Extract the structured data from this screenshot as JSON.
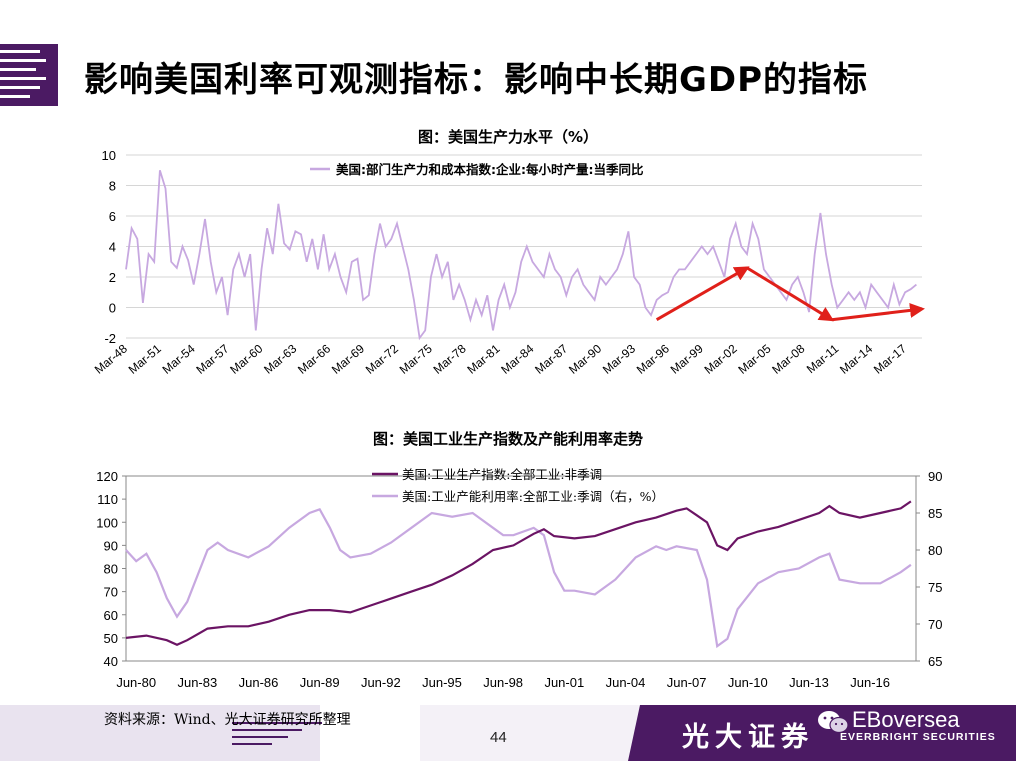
{
  "slide": {
    "title": "影响美国利率可观测指标：影响中长期GDP的指标",
    "source_note": "资料来源：Wind、光大证券研究所整理",
    "page_number": "44",
    "brand_cn": "光大证券",
    "brand_en": "EBoversea",
    "brand_en_sub": "EVERBRIGHT SECURITIES",
    "colors": {
      "accent": "#4b1a63",
      "line_light": "#c7a8e0",
      "line_dark": "#6b1464",
      "arrow": "#e0201a"
    }
  },
  "chart_data": [
    {
      "type": "line",
      "title": "图：美国生产力水平（%）",
      "legend_label": "美国:部门生产力和成本指数:企业:每小时产量:当季同比",
      "ylim": [
        -2,
        10
      ],
      "yticks": [
        "10",
        "8",
        "6",
        "4",
        "2",
        "0",
        "-2"
      ],
      "xticks": [
        "Mar-48",
        "Mar-51",
        "Mar-54",
        "Mar-57",
        "Mar-60",
        "Mar-63",
        "Mar-66",
        "Mar-69",
        "Mar-72",
        "Mar-75",
        "Mar-78",
        "Mar-81",
        "Mar-84",
        "Mar-87",
        "Mar-90",
        "Mar-93",
        "Mar-96",
        "Mar-99",
        "Mar-02",
        "Mar-05",
        "Mar-08",
        "Mar-11",
        "Mar-14",
        "Mar-17"
      ],
      "grid": true,
      "series": [
        {
          "name": "美国:部门生产力和成本指数:企业:每小时产量:当季同比",
          "x": [
            1948.0,
            1948.5,
            1949.0,
            1949.5,
            1950.0,
            1950.5,
            1951.0,
            1951.5,
            1952.0,
            1952.5,
            1953.0,
            1953.5,
            1954.0,
            1954.5,
            1955.0,
            1955.5,
            1956.0,
            1956.5,
            1957.0,
            1957.5,
            1958.0,
            1958.5,
            1959.0,
            1959.5,
            1960.0,
            1960.5,
            1961.0,
            1961.5,
            1962.0,
            1962.5,
            1963.0,
            1963.5,
            1964.0,
            1964.5,
            1965.0,
            1965.5,
            1966.0,
            1966.5,
            1967.0,
            1967.5,
            1968.0,
            1968.5,
            1969.0,
            1969.5,
            1970.0,
            1970.5,
            1971.0,
            1971.5,
            1972.0,
            1972.5,
            1973.0,
            1973.5,
            1974.0,
            1974.5,
            1975.0,
            1975.5,
            1976.0,
            1976.5,
            1977.0,
            1977.5,
            1978.0,
            1978.5,
            1979.0,
            1979.5,
            1980.0,
            1980.5,
            1981.0,
            1981.5,
            1982.0,
            1982.5,
            1983.0,
            1983.5,
            1984.0,
            1984.5,
            1985.0,
            1985.5,
            1986.0,
            1986.5,
            1987.0,
            1987.5,
            1988.0,
            1988.5,
            1989.0,
            1989.5,
            1990.0,
            1990.5,
            1991.0,
            1991.5,
            1992.0,
            1992.5,
            1993.0,
            1993.5,
            1994.0,
            1994.5,
            1995.0,
            1995.5,
            1996.0,
            1996.5,
            1997.0,
            1997.5,
            1998.0,
            1998.5,
            1999.0,
            1999.5,
            2000.0,
            2000.5,
            2001.0,
            2001.5,
            2002.0,
            2002.5,
            2003.0,
            2003.5,
            2004.0,
            2004.5,
            2005.0,
            2005.5,
            2006.0,
            2006.5,
            2007.0,
            2007.5,
            2008.0,
            2008.5,
            2009.0,
            2009.5,
            2010.0,
            2010.5,
            2011.0,
            2011.5,
            2012.0,
            2012.5,
            2013.0,
            2013.5,
            2014.0,
            2014.5,
            2015.0,
            2015.5,
            2016.0,
            2016.5,
            2017.0,
            2017.5,
            2018.0
          ],
          "values": [
            2.5,
            5.2,
            4.5,
            0.3,
            3.5,
            3.0,
            9.0,
            7.8,
            3.0,
            2.6,
            4.0,
            3.1,
            1.5,
            3.5,
            5.8,
            3.0,
            1.0,
            2.0,
            -0.5,
            2.5,
            3.5,
            2.0,
            3.5,
            -1.5,
            2.5,
            5.2,
            3.5,
            6.8,
            4.2,
            3.8,
            5.0,
            4.8,
            3.0,
            4.5,
            2.5,
            4.8,
            2.5,
            3.5,
            2.0,
            1.0,
            3.0,
            3.2,
            0.5,
            0.8,
            3.5,
            5.5,
            4.0,
            4.5,
            5.5,
            4.0,
            2.5,
            0.5,
            -2.0,
            -1.5,
            2.0,
            3.5,
            2.0,
            3.0,
            0.5,
            1.5,
            0.5,
            -0.8,
            0.5,
            -0.5,
            0.8,
            -1.5,
            0.5,
            1.5,
            0.0,
            1.0,
            3.0,
            4.0,
            3.0,
            2.5,
            2.0,
            3.5,
            2.5,
            2.0,
            0.8,
            2.0,
            2.5,
            1.5,
            1.0,
            0.5,
            2.0,
            1.5,
            2.0,
            2.5,
            3.5,
            5.0,
            2.0,
            1.5,
            0.0,
            -0.5,
            0.5,
            0.8,
            1.0,
            2.0,
            2.5,
            2.5,
            3.0,
            3.5,
            4.0,
            3.5,
            4.0,
            3.0,
            2.0,
            4.5,
            5.5,
            4.0,
            3.5,
            5.5,
            4.5,
            2.5,
            2.0,
            1.5,
            1.0,
            0.5,
            1.5,
            2.0,
            1.0,
            -0.3,
            3.5,
            6.2,
            3.5,
            1.5,
            0.0,
            0.5,
            1.0,
            0.5,
            1.0,
            0.0,
            1.5,
            1.0,
            0.5,
            0.0,
            1.5,
            0.2,
            1.0,
            1.2,
            1.5
          ]
        }
      ],
      "annotation_arrows": [
        {
          "from": [
            1995.0,
            -0.8
          ],
          "to": [
            2003.0,
            2.6
          ]
        },
        {
          "from": [
            2003.0,
            2.6
          ],
          "to": [
            2010.5,
            -0.8
          ]
        },
        {
          "from": [
            2010.5,
            -0.8
          ],
          "to": [
            2018.5,
            -0.1
          ]
        }
      ]
    },
    {
      "type": "line",
      "title": "图：美国工业生产指数及产能利用率走势",
      "ylim": [
        40,
        120
      ],
      "ylim_right": [
        65,
        90
      ],
      "yticks": [
        "120",
        "110",
        "100",
        "90",
        "80",
        "70",
        "60",
        "50",
        "40"
      ],
      "yticks_right": [
        "90",
        "85",
        "80",
        "75",
        "70",
        "65"
      ],
      "xticks": [
        "Jun-80",
        "Jun-83",
        "Jun-86",
        "Jun-89",
        "Jun-92",
        "Jun-95",
        "Jun-98",
        "Jun-01",
        "Jun-04",
        "Jun-07",
        "Jun-10",
        "Jun-13",
        "Jun-16"
      ],
      "grid": false,
      "legend_placement": "top-center",
      "series": [
        {
          "name": "美国:工业生产指数:全部工业:非季调",
          "axis": "left",
          "x": [
            1980.0,
            1981.0,
            1982.0,
            1982.5,
            1983.0,
            1984.0,
            1985.0,
            1986.0,
            1987.0,
            1988.0,
            1989.0,
            1990.0,
            1991.0,
            1992.0,
            1993.0,
            1994.0,
            1995.0,
            1996.0,
            1997.0,
            1998.0,
            1999.0,
            2000.0,
            2000.5,
            2001.0,
            2002.0,
            2003.0,
            2004.0,
            2005.0,
            2006.0,
            2007.0,
            2007.5,
            2008.0,
            2008.5,
            2009.0,
            2009.5,
            2010.0,
            2011.0,
            2012.0,
            2013.0,
            2014.0,
            2014.5,
            2015.0,
            2016.0,
            2017.0,
            2018.0,
            2018.5
          ],
          "values": [
            50,
            51,
            49,
            47,
            49,
            54,
            55,
            55,
            57,
            60,
            62,
            62,
            61,
            64,
            67,
            70,
            73,
            77,
            82,
            88,
            90,
            95,
            97,
            94,
            93,
            94,
            97,
            100,
            102,
            105,
            106,
            103,
            100,
            90,
            88,
            93,
            96,
            98,
            101,
            104,
            107,
            104,
            102,
            104,
            106,
            109
          ]
        },
        {
          "name": "美国:工业产能利用率:全部工业:季调（右，%）",
          "axis": "right",
          "x": [
            1980.0,
            1980.5,
            1981.0,
            1981.5,
            1982.0,
            1982.5,
            1983.0,
            1984.0,
            1984.5,
            1985.0,
            1986.0,
            1987.0,
            1988.0,
            1989.0,
            1989.5,
            1990.0,
            1990.5,
            1991.0,
            1992.0,
            1993.0,
            1994.0,
            1995.0,
            1996.0,
            1997.0,
            1998.0,
            1998.5,
            1999.0,
            2000.0,
            2000.5,
            2001.0,
            2001.5,
            2002.0,
            2003.0,
            2004.0,
            2005.0,
            2006.0,
            2006.5,
            2007.0,
            2008.0,
            2008.5,
            2009.0,
            2009.5,
            2010.0,
            2011.0,
            2012.0,
            2013.0,
            2014.0,
            2014.5,
            2015.0,
            2016.0,
            2017.0,
            2018.0,
            2018.5
          ],
          "values": [
            80,
            78.5,
            79.5,
            77,
            73.5,
            71,
            73,
            80,
            81,
            80,
            79,
            80.5,
            83,
            85,
            85.5,
            83,
            80,
            79,
            79.5,
            81,
            83,
            85,
            84.5,
            85,
            83,
            82,
            82,
            83,
            82,
            77,
            74.5,
            74.5,
            74,
            76,
            79,
            80.5,
            80,
            80.5,
            80,
            76,
            67,
            68,
            72,
            75.5,
            77,
            77.5,
            79,
            79.5,
            76,
            75.5,
            75.5,
            77,
            78
          ]
        }
      ]
    }
  ]
}
